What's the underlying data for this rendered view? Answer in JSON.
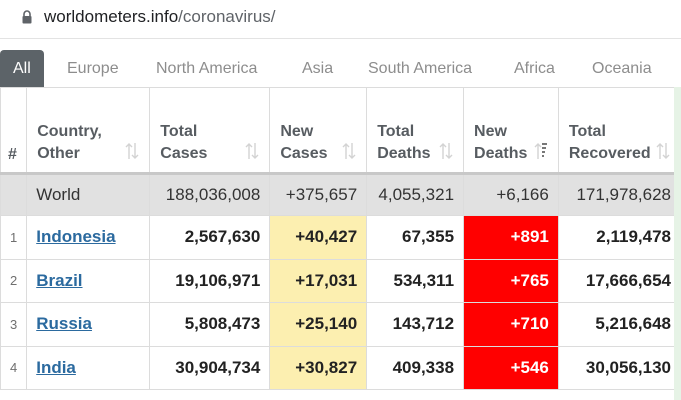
{
  "browser": {
    "url_domain": "worldometers.info",
    "url_path": "/coronavirus/"
  },
  "tabs": [
    {
      "label": "All",
      "active": true
    },
    {
      "label": "Europe",
      "active": false
    },
    {
      "label": "North America",
      "active": false
    },
    {
      "label": "Asia",
      "active": false
    },
    {
      "label": "South America",
      "active": false
    },
    {
      "label": "Africa",
      "active": false
    },
    {
      "label": "Oceania",
      "active": false
    }
  ],
  "columns": [
    {
      "line1": "#",
      "line2": ""
    },
    {
      "line1": "Country,",
      "line2": "Other"
    },
    {
      "line1": "Total",
      "line2": "Cases"
    },
    {
      "line1": "New",
      "line2": "Cases"
    },
    {
      "line1": "Total",
      "line2": "Deaths"
    },
    {
      "line1": "New",
      "line2": "Deaths"
    },
    {
      "line1": "Total",
      "line2": "Recovered"
    }
  ],
  "world": {
    "name": "World",
    "total_cases": "188,036,008",
    "new_cases": "+375,657",
    "total_deaths": "4,055,321",
    "new_deaths": "+6,166",
    "total_recovered": "171,978,628"
  },
  "rows": [
    {
      "idx": "1",
      "country": "Indonesia",
      "total_cases": "2,567,630",
      "new_cases": "+40,427",
      "total_deaths": "67,355",
      "new_deaths": "+891",
      "total_recovered": "2,119,478"
    },
    {
      "idx": "2",
      "country": "Brazil",
      "total_cases": "19,106,971",
      "new_cases": "+17,031",
      "total_deaths": "534,311",
      "new_deaths": "+765",
      "total_recovered": "17,666,654"
    },
    {
      "idx": "3",
      "country": "Russia",
      "total_cases": "5,808,473",
      "new_cases": "+25,140",
      "total_deaths": "143,712",
      "new_deaths": "+710",
      "total_recovered": "5,216,648"
    },
    {
      "idx": "4",
      "country": "India",
      "total_cases": "30,904,734",
      "new_cases": "+30,827",
      "total_deaths": "409,338",
      "new_deaths": "+546",
      "total_recovered": "30,056,130"
    }
  ],
  "colors": {
    "new_cases_bg": "#fcefb0",
    "new_deaths_bg": "#ff0000",
    "active_tab_bg": "#5c6368",
    "link": "#2b6a9f"
  },
  "icons": {
    "lock": "lock-icon",
    "sort": "sort-arrows-icon",
    "sort_active": "sort-desc-icon"
  }
}
